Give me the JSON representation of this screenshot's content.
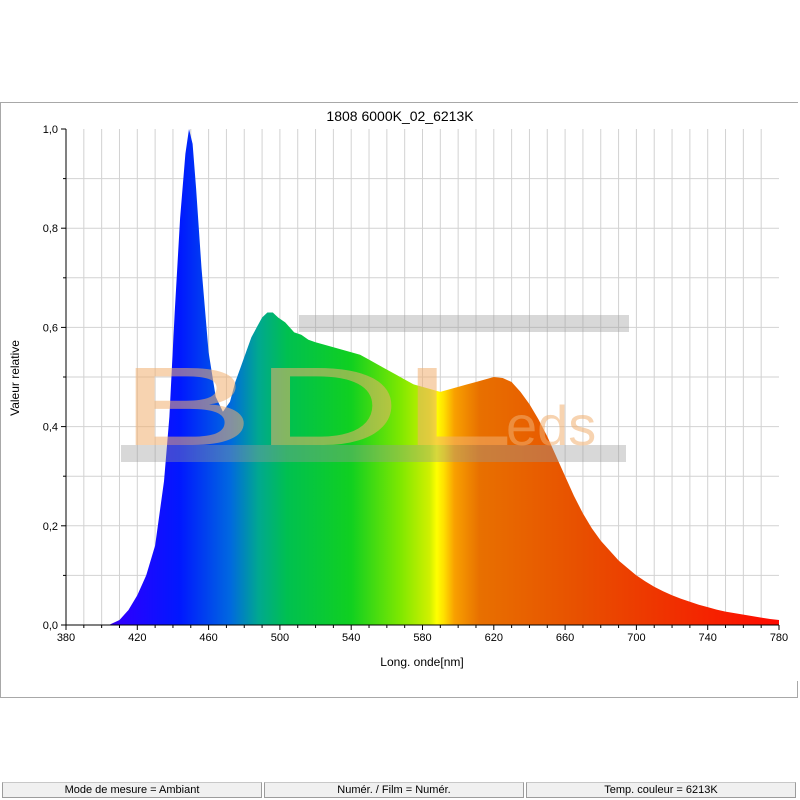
{
  "chart_data": {
    "type": "area",
    "title": "1808 6000K_02_6213K",
    "xlabel": "Long. onde[nm]",
    "ylabel": "Valeur relative",
    "xlim": [
      380,
      780
    ],
    "ylim": [
      0,
      1
    ],
    "x_ticks": [
      "380",
      "420",
      "460",
      "500",
      "540",
      "580",
      "620",
      "660",
      "700",
      "740",
      "780"
    ],
    "y_ticks": [
      "0,0",
      "0,2",
      "0,4",
      "0,6",
      "0,8",
      "1,0"
    ],
    "grid": true,
    "fill": "visible-spectrum gradient",
    "series": [
      {
        "x": [
          404,
          410,
          415,
          420,
          425,
          430,
          435,
          438,
          441,
          444,
          447,
          449,
          451,
          453,
          456,
          460,
          464,
          468,
          472,
          475,
          478,
          481,
          484,
          487,
          490,
          493,
          496,
          499,
          503,
          508,
          512,
          516,
          520,
          525,
          530,
          535,
          540,
          545,
          550,
          555,
          560,
          565,
          570,
          575,
          580,
          585,
          590,
          595,
          600,
          605,
          610,
          615,
          620,
          625,
          630,
          635,
          640,
          645,
          650,
          655,
          660,
          665,
          670,
          675,
          680,
          685,
          690,
          695,
          700,
          705,
          710,
          715,
          720,
          725,
          730,
          735,
          740,
          745,
          750,
          755,
          760,
          765,
          770,
          775,
          780
        ],
        "y": [
          0.0,
          0.01,
          0.03,
          0.06,
          0.1,
          0.16,
          0.29,
          0.42,
          0.63,
          0.82,
          0.95,
          1.0,
          0.97,
          0.88,
          0.72,
          0.55,
          0.46,
          0.43,
          0.45,
          0.49,
          0.52,
          0.55,
          0.58,
          0.6,
          0.62,
          0.63,
          0.63,
          0.62,
          0.61,
          0.59,
          0.585,
          0.575,
          0.57,
          0.565,
          0.56,
          0.555,
          0.55,
          0.545,
          0.535,
          0.525,
          0.515,
          0.505,
          0.495,
          0.485,
          0.48,
          0.475,
          0.47,
          0.475,
          0.48,
          0.485,
          0.49,
          0.495,
          0.5,
          0.498,
          0.49,
          0.47,
          0.445,
          0.415,
          0.38,
          0.34,
          0.3,
          0.26,
          0.225,
          0.195,
          0.17,
          0.15,
          0.13,
          0.115,
          0.1,
          0.088,
          0.077,
          0.068,
          0.06,
          0.053,
          0.047,
          0.041,
          0.036,
          0.031,
          0.027,
          0.024,
          0.021,
          0.018,
          0.015,
          0.012,
          0.01
        ]
      }
    ]
  },
  "watermark": {
    "text_large": "BDL",
    "text_small": "eds",
    "color": "#f0b070"
  },
  "statusbar": {
    "mode": "Mode de mesure = Ambiant",
    "numer": "Numér. / Film = Numér.",
    "temp": "Temp. couleur = 6213K"
  }
}
